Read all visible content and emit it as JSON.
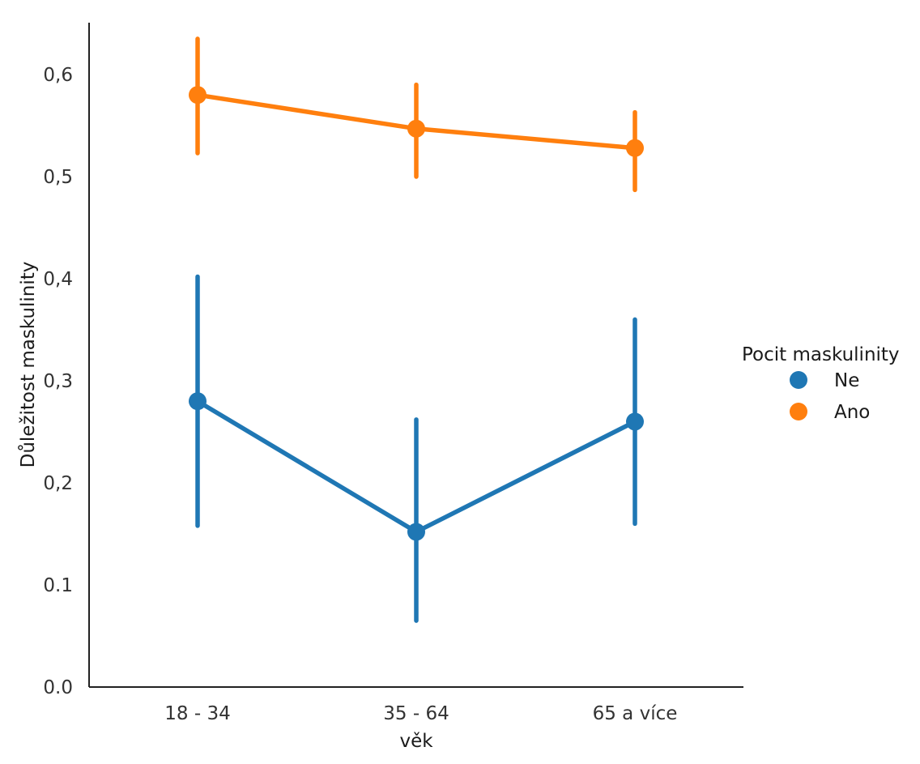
{
  "chart_data": {
    "type": "line",
    "subtype": "pointplot-with-error-bars",
    "title": "",
    "xlabel": "věk",
    "ylabel": "Důležitost maskulinity",
    "categories": [
      "18 - 34",
      "35 - 64",
      "65 a více"
    ],
    "ylim": [
      0.0,
      0.65
    ],
    "yticks": [
      0.0,
      0.1,
      0.2,
      0.3,
      0.4,
      0.5,
      0.6
    ],
    "ytick_labels": [
      "0.0",
      "0.1",
      "0,2",
      "0,3",
      "0,4",
      "0,5",
      "0,6"
    ],
    "grid": false,
    "legend": {
      "title": "Pocit maskulinity",
      "placement": "right"
    },
    "series": [
      {
        "name": "Ne",
        "color": "#1f77b4",
        "values": [
          0.28,
          0.152,
          0.26
        ],
        "error_low": [
          0.158,
          0.065,
          0.16
        ],
        "error_high": [
          0.402,
          0.262,
          0.36
        ]
      },
      {
        "name": "Ano",
        "color": "#ff7f0e",
        "values": [
          0.58,
          0.547,
          0.528
        ],
        "error_low": [
          0.523,
          0.5,
          0.487
        ],
        "error_high": [
          0.635,
          0.59,
          0.563
        ]
      }
    ]
  }
}
